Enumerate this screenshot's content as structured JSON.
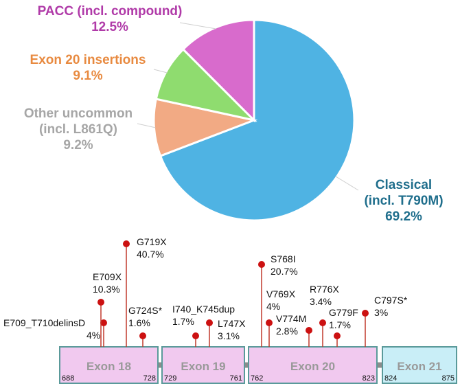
{
  "chart_data": [
    {
      "type": "pie",
      "slices": [
        {
          "label_lines": [
            "Classical",
            "(incl. T790M)"
          ],
          "value": 69.2,
          "value_label": "69.2%",
          "color": "#4fb3e3",
          "label_color": "#1f6e8c"
        },
        {
          "label_lines": [
            "Other uncommon",
            "(incl. L861Q)"
          ],
          "value": 9.2,
          "value_label": "9.2%",
          "color": "#f2aa84",
          "label_color": "#a6a6a6"
        },
        {
          "label_lines": [
            "Exon 20 insertions"
          ],
          "value": 9.1,
          "value_label": "9.1%",
          "color": "#8fdc6f",
          "label_color": "#e88a40"
        },
        {
          "label_lines": [
            "PACC (incl. compound)"
          ],
          "value": 12.5,
          "value_label": "12.5%",
          "color": "#d86bcc",
          "label_color": "#b03aa8"
        }
      ]
    },
    {
      "type": "lollipop",
      "exons": [
        {
          "name": "Exon 18",
          "start": "688",
          "end": "728",
          "color": "#f1c9ef",
          "border": "#5a9a9a"
        },
        {
          "name": "Exon 19",
          "start": "729",
          "end": "761",
          "color": "#f1c9ef",
          "border": "#5a9a9a"
        },
        {
          "name": "Exon 20",
          "start": "762",
          "end": "823",
          "color": "#f1c9ef",
          "border": "#5a9a9a"
        },
        {
          "name": "Exon 21",
          "start": "824",
          "end": "875",
          "color": "#c9eef7",
          "border": "#5a9a9a"
        }
      ],
      "mutations": [
        {
          "name": "E709_T710delinsD",
          "value_label": "4%",
          "value": 4,
          "position": 709.5
        },
        {
          "name": "E709X",
          "value_label": "10.3%",
          "value": 10.3,
          "position": 709
        },
        {
          "name": "G719X",
          "value_label": "40.7%",
          "value": 40.7,
          "position": 719
        },
        {
          "name": "G724S*",
          "value_label": "1.6%",
          "value": 1.6,
          "position": 724
        },
        {
          "name": "I740_K745dup",
          "value_label": "1.7%",
          "value": 1.7,
          "position": 742
        },
        {
          "name": "L747X",
          "value_label": "3.1%",
          "value": 3.1,
          "position": 747
        },
        {
          "name": "S768I",
          "value_label": "20.7%",
          "value": 20.7,
          "position": 768
        },
        {
          "name": "V769X",
          "value_label": "4%",
          "value": 4,
          "position": 769
        },
        {
          "name": "V774M",
          "value_label": "2.8%",
          "value": 2.8,
          "position": 774
        },
        {
          "name": "R776X",
          "value_label": "3.4%",
          "value": 3.4,
          "position": 776
        },
        {
          "name": "G779F",
          "value_label": "1.7%",
          "value": 1.7,
          "position": 779
        },
        {
          "name": "C797S*",
          "value_label": "3%",
          "value": 3,
          "position": 797
        }
      ],
      "colors": {
        "stem": "#c0392b",
        "head": "#cc1111",
        "connector": "#8c8c8c"
      }
    }
  ]
}
